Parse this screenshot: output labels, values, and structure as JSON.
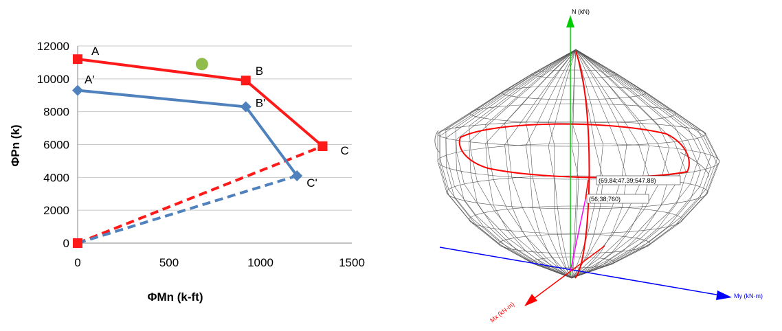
{
  "chart_data": [
    {
      "type": "line",
      "title": "",
      "xlabel": "ΦMn (k-ft)",
      "ylabel": "ΦPn (k)",
      "xlim": [
        0,
        1500
      ],
      "ylim": [
        0,
        12000
      ],
      "xticks": [
        "0",
        "500",
        "1000",
        "1500"
      ],
      "yticks": [
        "0",
        "2000",
        "4000",
        "6000",
        "8000",
        "10000",
        "12000"
      ],
      "grid": "horizontal",
      "series": [
        {
          "color": "#ff1a1a",
          "marker": "square",
          "style": "solid",
          "points": [
            {
              "label": "A",
              "x": 0,
              "y": 11200
            },
            {
              "label": "B",
              "x": 920,
              "y": 9900
            },
            {
              "label": "C",
              "x": 1340,
              "y": 5900
            }
          ]
        },
        {
          "color": "#ff1a1a",
          "marker": "square",
          "style": "dashed",
          "points": [
            {
              "label": "",
              "x": 0,
              "y": 0
            },
            {
              "label": "",
              "x": 1340,
              "y": 5900
            }
          ]
        },
        {
          "color": "#4f81bd",
          "marker": "diamond",
          "style": "solid",
          "points": [
            {
              "label": "A'",
              "x": 0,
              "y": 9300
            },
            {
              "label": "B'",
              "x": 920,
              "y": 8300
            },
            {
              "label": "C'",
              "x": 1200,
              "y": 4100
            }
          ]
        },
        {
          "color": "#4f81bd",
          "marker": "none",
          "style": "dashed",
          "points": [
            {
              "label": "",
              "x": 0,
              "y": 0
            },
            {
              "label": "",
              "x": 1200,
              "y": 4100
            }
          ]
        }
      ],
      "extra_points": [
        {
          "x": 680,
          "y": 10900,
          "color": "#8fbc4b",
          "marker": "circle"
        }
      ]
    },
    {
      "type": "3d-surface",
      "title": "",
      "axes": {
        "n_label": "N (kN)",
        "my_label": "My (kN·m)",
        "mx_label": "Mx (kN·m)"
      },
      "annotations": [
        "(69.84;47.39;547.88)",
        "(56;38;760)"
      ],
      "colors": {
        "mesh": "#555555",
        "n_axis": "#00cc00",
        "my_axis": "#0000ff",
        "mx_axis": "#ff0000",
        "load_path": "#ff00ff"
      }
    }
  ]
}
